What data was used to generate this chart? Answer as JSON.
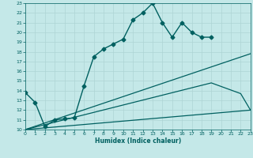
{
  "title": "",
  "xlabel": "Humidex (Indice chaleur)",
  "ylabel": "",
  "background_color": "#c4e8e8",
  "grid_color": "#aed4d4",
  "line_color": "#006060",
  "xlim": [
    0,
    23
  ],
  "ylim": [
    10,
    23
  ],
  "xticks": [
    0,
    1,
    2,
    3,
    4,
    5,
    6,
    7,
    8,
    9,
    10,
    11,
    12,
    13,
    14,
    15,
    16,
    17,
    18,
    19,
    20,
    21,
    22,
    23
  ],
  "yticks": [
    10,
    11,
    12,
    13,
    14,
    15,
    16,
    17,
    18,
    19,
    20,
    21,
    22,
    23
  ],
  "series": [
    {
      "x": [
        0,
        1,
        2,
        3,
        4,
        5,
        6,
        7,
        8,
        9,
        10,
        11,
        12,
        13,
        14,
        15,
        16,
        17,
        18,
        19
      ],
      "y": [
        13.8,
        12.8,
        10.3,
        11.0,
        11.1,
        11.2,
        14.5,
        17.5,
        18.3,
        18.8,
        19.3,
        21.3,
        22.0,
        23.0,
        21.0,
        19.5,
        21.0,
        20.0,
        19.5,
        19.5
      ],
      "marker": "D",
      "markersize": 2.5,
      "linewidth": 1.0
    },
    {
      "x": [
        0,
        23
      ],
      "y": [
        10,
        17.8
      ],
      "marker": null,
      "markersize": 0,
      "linewidth": 0.9
    },
    {
      "x": [
        0,
        19,
        22,
        23
      ],
      "y": [
        10,
        14.8,
        13.7,
        12.0
      ],
      "marker": null,
      "markersize": 0,
      "linewidth": 0.9
    },
    {
      "x": [
        0,
        23
      ],
      "y": [
        10,
        12.0
      ],
      "marker": null,
      "markersize": 0,
      "linewidth": 0.9
    }
  ]
}
